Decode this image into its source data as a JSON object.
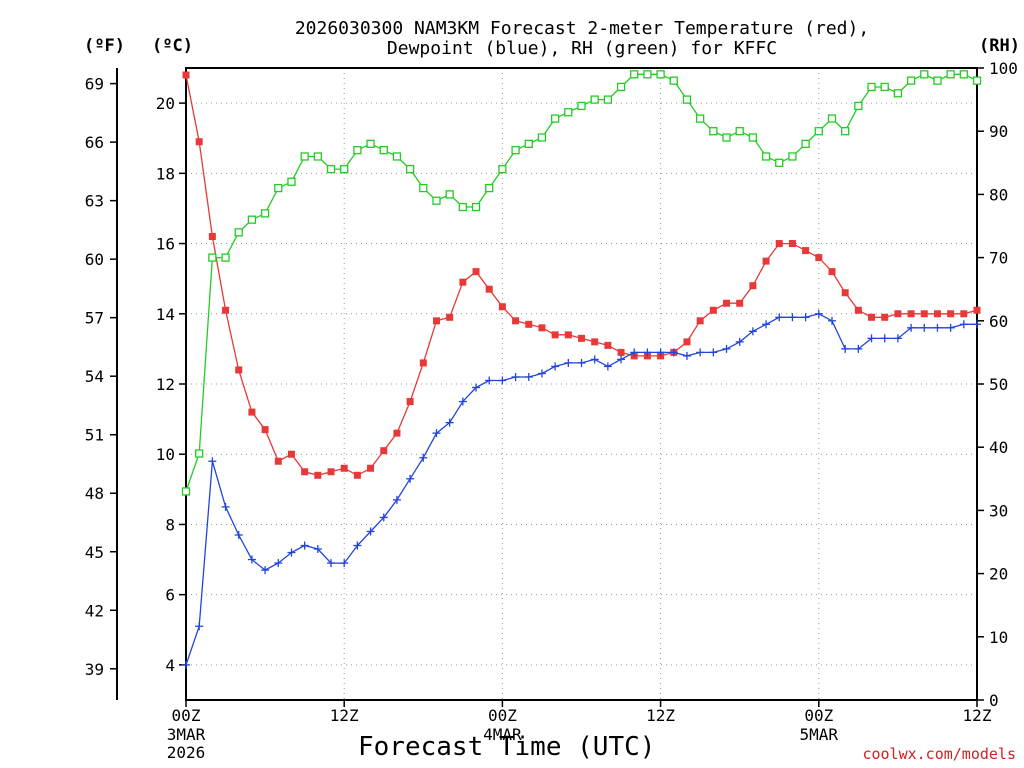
{
  "chart_data": {
    "type": "line",
    "title_line1": "2026030300 NAM3KM Forecast 2-meter Temperature (red),",
    "title_line2": "Dewpoint (blue), RH (green) for KFFC",
    "xlabel": "Forecast Time (UTC)",
    "credit": "coolwx.com/models",
    "units": {
      "fahrenheit": "(ºF)",
      "celsius": "(ºC)",
      "rh": "(RH)"
    },
    "x_range_hours": [
      0,
      60
    ],
    "x_ticks": [
      {
        "hour": 0,
        "label": "00Z",
        "sub1": "3MAR",
        "sub2": "2026"
      },
      {
        "hour": 12,
        "label": "12Z",
        "sub1": "",
        "sub2": ""
      },
      {
        "hour": 24,
        "label": "00Z",
        "sub1": "4MAR",
        "sub2": ""
      },
      {
        "hour": 36,
        "label": "12Z",
        "sub1": "",
        "sub2": ""
      },
      {
        "hour": 48,
        "label": "00Z",
        "sub1": "5MAR",
        "sub2": ""
      },
      {
        "hour": 60,
        "label": "12Z",
        "sub1": "",
        "sub2": ""
      }
    ],
    "y_left_celsius": {
      "range": [
        3,
        21
      ],
      "ticks": [
        4,
        6,
        8,
        10,
        12,
        14,
        16,
        18,
        20
      ]
    },
    "y_left_fahrenheit": {
      "ticks": [
        39,
        42,
        45,
        48,
        51,
        54,
        57,
        60,
        63,
        66,
        69
      ]
    },
    "y_right_rh": {
      "range": [
        0,
        100
      ],
      "ticks": [
        0,
        10,
        20,
        30,
        40,
        50,
        60,
        70,
        80,
        90,
        100
      ]
    },
    "series": [
      {
        "name": "Temperature",
        "color": "#e83838",
        "units": "C",
        "values": [
          20.8,
          18.9,
          16.2,
          14.1,
          12.4,
          11.2,
          10.7,
          9.8,
          10.0,
          9.5,
          9.4,
          9.5,
          9.6,
          9.4,
          9.6,
          10.1,
          10.6,
          11.5,
          12.6,
          13.8,
          13.9,
          14.9,
          15.2,
          14.7,
          14.2,
          13.8,
          13.7,
          13.6,
          13.4,
          13.4,
          13.3,
          13.2,
          13.1,
          12.9,
          12.8,
          12.8,
          12.8,
          12.9,
          13.2,
          13.8,
          14.1,
          14.3,
          14.3,
          14.8,
          15.5,
          16.0,
          16.0,
          15.8,
          15.6,
          15.2,
          14.6,
          14.1,
          13.9,
          13.9,
          14.0,
          14.0,
          14.0,
          14.0,
          14.0,
          14.0,
          14.1
        ]
      },
      {
        "name": "Dewpoint",
        "color": "#2244dd",
        "units": "C",
        "values": [
          4.0,
          5.1,
          9.8,
          8.5,
          7.7,
          7.0,
          6.7,
          6.9,
          7.2,
          7.4,
          7.3,
          6.9,
          6.9,
          7.4,
          7.8,
          8.2,
          8.7,
          9.3,
          9.9,
          10.6,
          10.9,
          11.5,
          11.9,
          12.1,
          12.1,
          12.2,
          12.2,
          12.3,
          12.5,
          12.6,
          12.6,
          12.7,
          12.5,
          12.7,
          12.9,
          12.9,
          12.9,
          12.9,
          12.8,
          12.9,
          12.9,
          13.0,
          13.2,
          13.5,
          13.7,
          13.9,
          13.9,
          13.9,
          14.0,
          13.8,
          13.0,
          13.0,
          13.3,
          13.3,
          13.3,
          13.6,
          13.6,
          13.6,
          13.6,
          13.7,
          13.7
        ]
      },
      {
        "name": "RH",
        "color": "#22cc22",
        "units": "%",
        "values": [
          33,
          39,
          70,
          70,
          74,
          76,
          77,
          81,
          82,
          86,
          86,
          84,
          84,
          87,
          88,
          87,
          86,
          84,
          81,
          79,
          80,
          78,
          78,
          81,
          84,
          87,
          88,
          89,
          92,
          93,
          94,
          95,
          95,
          97,
          99,
          99,
          99,
          98,
          95,
          92,
          90,
          89,
          90,
          89,
          86,
          85,
          86,
          88,
          90,
          92,
          90,
          94,
          97,
          97,
          96,
          98,
          99,
          98,
          99,
          99,
          98
        ]
      }
    ]
  }
}
